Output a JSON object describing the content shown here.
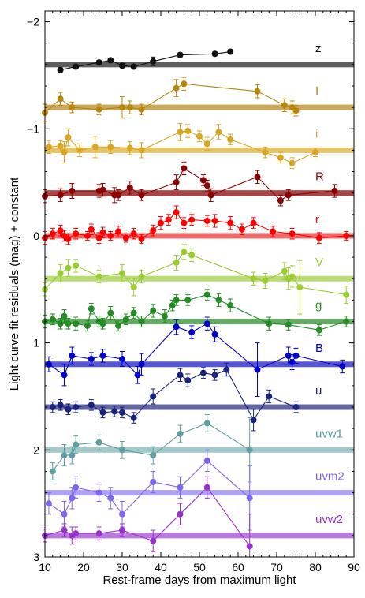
{
  "chart_data": {
    "type": "scatter",
    "xlabel": "Rest-frame days from maximum light",
    "ylabel": "Light curve fit residuals (mag) + constant",
    "xlim": [
      10,
      90
    ],
    "ylim": [
      3,
      -2.1
    ],
    "y_inverted": true,
    "grid": false,
    "xticks": [
      10,
      20,
      30,
      40,
      50,
      60,
      70,
      80,
      90
    ],
    "yticks": [
      -2,
      -1,
      0,
      1,
      2,
      3
    ],
    "ytick_labels": [
      "−2",
      "−1",
      "0",
      "1",
      "2",
      "3"
    ],
    "series": [
      {
        "name": "z",
        "color": "#111111",
        "band_color": "#555555",
        "offset": -1.6,
        "x": [
          14,
          18,
          24,
          27,
          30,
          33,
          38,
          45,
          54,
          58
        ],
        "y": [
          -1.55,
          -1.58,
          -1.62,
          -1.64,
          -1.59,
          -1.58,
          -1.63,
          -1.69,
          -1.7,
          -1.72
        ],
        "err": [
          0.02,
          0.02,
          0.02,
          0.02,
          0.02,
          0.02,
          0.04,
          0.02,
          0.02,
          0.02
        ]
      },
      {
        "name": "I",
        "color": "#b8860b",
        "band_color": "#c9a352",
        "offset": -1.2,
        "x": [
          10,
          14,
          17,
          24,
          30,
          32,
          35,
          44,
          46,
          65,
          72,
          74,
          75
        ],
        "y": [
          -1.15,
          -1.28,
          -1.2,
          -1.18,
          -1.2,
          -1.2,
          -1.18,
          -1.38,
          -1.42,
          -1.35,
          -1.22,
          -1.2,
          -1.17
        ],
        "err": [
          0.08,
          0.06,
          0.05,
          0.05,
          0.1,
          0.06,
          0.05,
          0.08,
          0.06,
          0.06,
          0.06,
          0.06,
          0.05
        ]
      },
      {
        "name": "i",
        "color": "#daa520",
        "band_color": "#e6c060",
        "offset": -0.8,
        "x": [
          11,
          14,
          15,
          16,
          19,
          23,
          27,
          32,
          35,
          45,
          47,
          50,
          52,
          55,
          58,
          67,
          71,
          74,
          80
        ],
        "y": [
          -0.83,
          -0.84,
          -0.78,
          -0.92,
          -0.8,
          -0.83,
          -0.83,
          -0.82,
          -0.8,
          -0.97,
          -0.98,
          -0.93,
          -0.86,
          -0.97,
          -0.9,
          -0.78,
          -0.73,
          -0.68,
          -0.78
        ],
        "err": [
          0.06,
          0.05,
          0.1,
          0.08,
          0.06,
          0.1,
          0.06,
          0.06,
          0.07,
          0.08,
          0.06,
          0.05,
          0.06,
          0.07,
          0.05,
          0.05,
          0.05,
          0.05,
          0.04
        ]
      },
      {
        "name": "R",
        "color": "#8b0000",
        "band_color": "#a33a3a",
        "offset": -0.4,
        "x": [
          10,
          14,
          17,
          24,
          25,
          28,
          29,
          32,
          35,
          44,
          46,
          51,
          52,
          53,
          65,
          71,
          73,
          85
        ],
        "y": [
          -0.37,
          -0.38,
          -0.42,
          -0.42,
          -0.43,
          -0.38,
          -0.38,
          -0.45,
          -0.38,
          -0.5,
          -0.63,
          -0.52,
          -0.47,
          -0.38,
          -0.55,
          -0.33,
          -0.38,
          -0.42
        ],
        "err": [
          0.06,
          0.06,
          0.07,
          0.06,
          0.06,
          0.07,
          0.05,
          0.06,
          0.05,
          0.07,
          0.06,
          0.05,
          0.05,
          0.06,
          0.06,
          0.05,
          0.05,
          0.06
        ]
      },
      {
        "name": "r",
        "color": "#ff0000",
        "band_color": "#f06262",
        "offset": 0.0,
        "x": [
          10,
          12,
          14,
          15,
          16,
          18,
          21,
          22,
          24,
          25,
          27,
          29,
          31,
          33,
          35,
          38,
          40,
          42,
          44,
          46,
          48,
          52,
          54,
          58,
          61,
          64,
          69,
          74,
          81,
          88
        ],
        "y": [
          0.02,
          -0.02,
          -0.05,
          0.0,
          0.03,
          -0.02,
          0.0,
          -0.06,
          0.02,
          -0.03,
          0.0,
          -0.04,
          0.02,
          -0.02,
          0.03,
          -0.05,
          -0.12,
          -0.15,
          -0.22,
          -0.12,
          -0.15,
          -0.14,
          -0.14,
          -0.12,
          -0.06,
          -0.12,
          -0.04,
          -0.02,
          0.02,
          0.0
        ],
        "err": [
          0.06,
          0.05,
          0.05,
          0.05,
          0.05,
          0.05,
          0.04,
          0.05,
          0.05,
          0.05,
          0.04,
          0.05,
          0.04,
          0.05,
          0.04,
          0.05,
          0.06,
          0.05,
          0.06,
          0.05,
          0.05,
          0.05,
          0.06,
          0.06,
          0.05,
          0.05,
          0.05,
          0.05,
          0.05,
          0.04
        ]
      },
      {
        "name": "V",
        "color": "#9acd32",
        "band_color": "#b3db6c",
        "offset": 0.4,
        "x": [
          10,
          14,
          16,
          18,
          24,
          30,
          33,
          35,
          44,
          46,
          48,
          64,
          67,
          72,
          73,
          74,
          76,
          88
        ],
        "y": [
          0.5,
          0.35,
          0.3,
          0.28,
          0.38,
          0.35,
          0.48,
          0.38,
          0.25,
          0.15,
          0.18,
          0.4,
          0.42,
          0.33,
          0.4,
          0.38,
          0.48,
          0.55
        ],
        "err": [
          0.06,
          0.08,
          0.08,
          0.06,
          0.06,
          0.08,
          0.08,
          0.06,
          0.07,
          0.07,
          0.06,
          0.06,
          0.07,
          0.08,
          0.1,
          0.1,
          0.25,
          0.08
        ]
      },
      {
        "name": "g",
        "color": "#228b22",
        "band_color": "#5ba65b",
        "offset": 0.8,
        "x": [
          10,
          12,
          14,
          15,
          16,
          18,
          21,
          22,
          24,
          25,
          27,
          29,
          31,
          33,
          35,
          38,
          41,
          43,
          44,
          47,
          52,
          55,
          58,
          68,
          73,
          81,
          88
        ],
        "y": [
          0.8,
          0.78,
          0.82,
          0.75,
          0.82,
          0.82,
          0.84,
          0.68,
          0.8,
          0.82,
          0.72,
          0.84,
          0.78,
          0.72,
          0.8,
          0.7,
          0.75,
          0.65,
          0.6,
          0.6,
          0.55,
          0.6,
          0.65,
          0.82,
          0.83,
          0.88,
          0.8
        ],
        "err": [
          0.06,
          0.05,
          0.05,
          0.06,
          0.05,
          0.06,
          0.05,
          0.05,
          0.05,
          0.05,
          0.06,
          0.05,
          0.05,
          0.05,
          0.05,
          0.06,
          0.06,
          0.05,
          0.05,
          0.05,
          0.05,
          0.06,
          0.06,
          0.06,
          0.05,
          0.05,
          0.05
        ]
      },
      {
        "name": "B",
        "color": "#0000cd",
        "band_color": "#4d4dd6",
        "offset": 1.2,
        "x": [
          11,
          15,
          17,
          22,
          25,
          30,
          34,
          35,
          44,
          48,
          52,
          54,
          65,
          73,
          74,
          75,
          87
        ],
        "y": [
          1.2,
          1.3,
          1.12,
          1.15,
          1.12,
          1.15,
          1.3,
          1.2,
          0.85,
          0.9,
          0.82,
          0.92,
          1.25,
          1.12,
          1.18,
          1.12,
          1.22
        ],
        "err": [
          0.07,
          0.1,
          0.08,
          0.06,
          0.06,
          0.07,
          0.08,
          0.1,
          0.07,
          0.06,
          0.06,
          0.07,
          0.25,
          0.08,
          0.07,
          0.07,
          0.06
        ]
      },
      {
        "name": "u",
        "color": "#1a237e",
        "band_color": "#5a5f9a",
        "offset": 1.6,
        "x": [
          12,
          14,
          16,
          18,
          22,
          25,
          28,
          30,
          33,
          38,
          45,
          47,
          51,
          54,
          57,
          64,
          68,
          75
        ],
        "y": [
          1.6,
          1.58,
          1.62,
          1.6,
          1.58,
          1.65,
          1.64,
          1.65,
          1.7,
          1.5,
          1.3,
          1.35,
          1.28,
          1.3,
          1.25,
          1.72,
          1.5,
          1.6
        ],
        "err": [
          0.05,
          0.05,
          0.05,
          0.05,
          0.05,
          0.05,
          0.05,
          0.05,
          0.05,
          0.07,
          0.06,
          0.06,
          0.05,
          0.05,
          0.06,
          0.1,
          0.06,
          0.05
        ]
      },
      {
        "name": "uvw1",
        "color": "#5f9ea0",
        "band_color": "#9ec7c8",
        "offset": 2.0,
        "x": [
          12,
          15,
          17,
          18,
          24,
          30,
          38,
          45,
          52,
          63
        ],
        "y": [
          2.2,
          2.05,
          2.05,
          1.95,
          1.93,
          2.0,
          2.05,
          1.85,
          1.75,
          2.0
        ],
        "err": [
          0.08,
          0.1,
          0.08,
          0.08,
          0.07,
          0.08,
          0.08,
          0.08,
          0.08,
          0.3
        ]
      },
      {
        "name": "uvm2",
        "color": "#7b68ee",
        "band_color": "#a9a0f2",
        "offset": 2.4,
        "x": [
          11,
          15,
          17,
          18,
          24,
          27,
          30,
          38,
          45,
          52,
          63
        ],
        "y": [
          2.5,
          2.6,
          2.45,
          2.35,
          2.4,
          2.45,
          2.6,
          2.3,
          2.35,
          2.1,
          2.45
        ],
        "err": [
          0.1,
          0.12,
          0.1,
          0.1,
          0.08,
          0.1,
          0.12,
          0.1,
          0.1,
          0.1,
          0.3
        ]
      },
      {
        "name": "uvw2",
        "color": "#9932cc",
        "band_color": "#b873dc",
        "offset": 2.8,
        "x": [
          10,
          15,
          17,
          18,
          24,
          30,
          38,
          45,
          52,
          63
        ],
        "y": [
          2.8,
          2.75,
          2.8,
          2.78,
          2.78,
          2.75,
          2.85,
          2.6,
          2.35,
          2.9
        ],
        "err": [
          0.06,
          0.06,
          0.08,
          0.06,
          0.06,
          0.06,
          0.1,
          0.1,
          0.1,
          0.3
        ]
      }
    ]
  }
}
